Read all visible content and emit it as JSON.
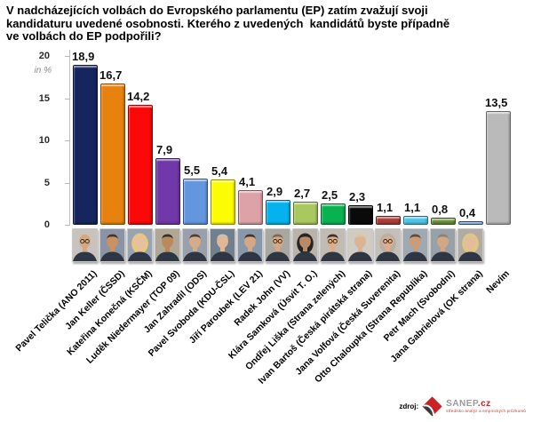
{
  "title": {
    "lines": [
      "V nadcházejících volbách do Evropského parlamentu (EP) zatím zvažují svoji",
      "kandidaturu uvedené osobnosti. Kterého z uvedených  kandidátů byste případně",
      "ve volbách do EP podpořili?"
    ]
  },
  "y_axis": {
    "unit_label": "in %",
    "ticks": [
      "20",
      "15",
      "10",
      "5",
      "0"
    ]
  },
  "chart_data": {
    "type": "bar",
    "title": "V nadcházejících volbách do Evropského parlamentu (EP) zatím zvažují svoji kandidaturu uvedené osobnosti. Kterého z uvedených kandidátů byste případně ve volbách do EP podpořili?",
    "xlabel": "",
    "ylabel": "in %",
    "ylim": [
      0,
      20
    ],
    "grid": false,
    "legend": false,
    "categories": [
      "Pavel Telička (ANO 2011)",
      "Jan Keller (ČSSD)",
      "Kateřina Konečná (KSČM)",
      "Luděk Niedermayer (TOP 09)",
      "Jan Zahradil (ODS)",
      "Pavel Svoboda (KDU-ČSL)",
      "Jiří Paroubek (LEV 21)",
      "Radek John (VV)",
      "Klára Samková (Úsvit T. O.)",
      "Ondřej Liška (Strana zelených)",
      "Ivan Bartoš (Česká pirátská strana)",
      "Jana Volfová (Česká Suverenita)",
      "Otto Chaloupka (Strana Republika)",
      "Petr Mach (Svobodní)",
      "Jana Gabrielová (OK strana)",
      "Nevím"
    ],
    "values": [
      18.9,
      16.7,
      14.2,
      7.9,
      5.5,
      5.4,
      4.1,
      2.9,
      2.7,
      2.5,
      2.3,
      1.1,
      1.1,
      0.8,
      0.4,
      13.5
    ],
    "value_labels": [
      "18,9",
      "16,7",
      "14,2",
      "7,9",
      "5,5",
      "5,4",
      "4,1",
      "2,9",
      "2,7",
      "2,5",
      "2,3",
      "1,1",
      "1,1",
      "0,8",
      "0,4",
      "13,5"
    ],
    "bar_colors": [
      "#14265d",
      "#e8820f",
      "#fb0808",
      "#7038a8",
      "#6396de",
      "#fcfc04",
      "#dda2a8",
      "#05b2ee",
      "#a9c860",
      "#08b251",
      "#0a0a0a",
      "#ad3c3a",
      "#4ec5e8",
      "#6d9038",
      "#4a7fd2",
      "#bababa"
    ]
  },
  "avatars": [
    {
      "bg": "#c8c4bd",
      "skin": "#d9a77d",
      "hair": "#d9a77d",
      "bald": true,
      "glasses": true,
      "female": false
    },
    {
      "bg": "#8a94a6",
      "skin": "#c89263",
      "hair": "#4a3426",
      "bald": false,
      "glasses": false,
      "female": false
    },
    {
      "bg": "#9aa4b0",
      "skin": "#e8bfa0",
      "hair": "#e8c87a",
      "bald": false,
      "glasses": false,
      "female": true
    },
    {
      "bg": "#b0a895",
      "skin": "#b98a5e",
      "hair": "#3a2e26",
      "bald": false,
      "glasses": false,
      "female": false
    },
    {
      "bg": "#9aa0aa",
      "skin": "#d8ab88",
      "hair": "#4a4038",
      "bald": false,
      "glasses": false,
      "female": false
    },
    {
      "bg": "#70808e",
      "skin": "#e0b898",
      "hair": "#c8c0b0",
      "bald": false,
      "glasses": false,
      "female": false
    },
    {
      "bg": "#8898a8",
      "skin": "#d8a684",
      "hair": "#3e3430",
      "bald": false,
      "glasses": false,
      "female": false
    },
    {
      "bg": "#a8a8a0",
      "skin": "#d4a888",
      "hair": "#7a6a52",
      "bald": false,
      "glasses": true,
      "female": false
    },
    {
      "bg": "#b8b4ac",
      "skin": "#b98a68",
      "hair": "#2a2420",
      "bald": false,
      "glasses": false,
      "female": true
    },
    {
      "bg": "#c0bcb4",
      "skin": "#d8ae8c",
      "hair": "#3a322a",
      "bald": false,
      "glasses": true,
      "female": false
    },
    {
      "bg": "#d0ccc4",
      "skin": "#dcb494",
      "hair": "#d8c8a0",
      "bald": false,
      "glasses": false,
      "female": false
    },
    {
      "bg": "#c4c0b8",
      "skin": "#dcae90",
      "hair": "#b8b0a4",
      "bald": false,
      "glasses": true,
      "female": true
    },
    {
      "bg": "#a0a8b0",
      "skin": "#cc9c74",
      "hair": "#5a4c3e",
      "bald": false,
      "glasses": false,
      "female": false
    },
    {
      "bg": "#98a0a8",
      "skin": "#d0a888",
      "hair": "#8a8278",
      "bald": false,
      "glasses": false,
      "female": false
    },
    {
      "bg": "#b0aca4",
      "skin": "#e4bc9c",
      "hair": "#e0c684",
      "bald": false,
      "glasses": false,
      "female": true
    },
    null
  ],
  "source": {
    "label": "zdroj:",
    "brand": "SANEP",
    "brand_suffix": ".cz",
    "tagline": "středisko analýz a empirických průzkumů"
  }
}
